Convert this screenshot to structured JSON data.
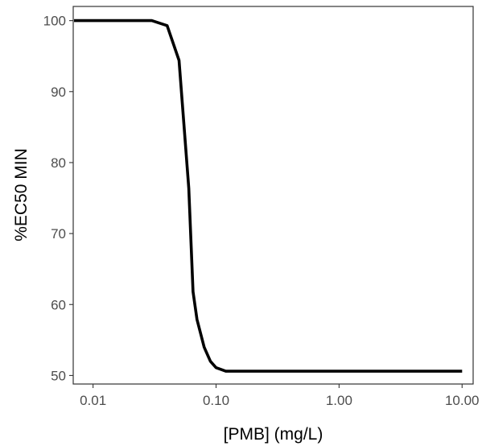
{
  "chart_data": {
    "type": "line",
    "title": "",
    "xlabel": "[PMB] (mg/L)",
    "ylabel": "%EC50 MIN",
    "x_scale": "log10",
    "xlim": [
      0.0069,
      12.3
    ],
    "ylim": [
      48.8,
      102.0
    ],
    "grid": false,
    "x_ticks": [
      0.01,
      0.1,
      1.0,
      10.0
    ],
    "x_tick_labels": [
      "0.01",
      "0.10",
      "1.00",
      "10.00"
    ],
    "y_ticks": [
      50,
      60,
      70,
      80,
      90,
      100
    ],
    "y_tick_labels": [
      "50",
      "60",
      "70",
      "80",
      "90",
      "100"
    ],
    "series": [
      {
        "color": "#000000",
        "x": [
          0.007,
          0.03,
          0.04,
          0.05,
          0.06,
          0.065,
          0.07,
          0.08,
          0.09,
          0.1,
          0.12,
          0.2,
          1.0,
          10.0
        ],
        "y": [
          100,
          100,
          99.3,
          94.4,
          76.4,
          61.8,
          57.9,
          54.0,
          52.0,
          51.1,
          50.6,
          50.6,
          50.6,
          50.6
        ]
      }
    ]
  }
}
